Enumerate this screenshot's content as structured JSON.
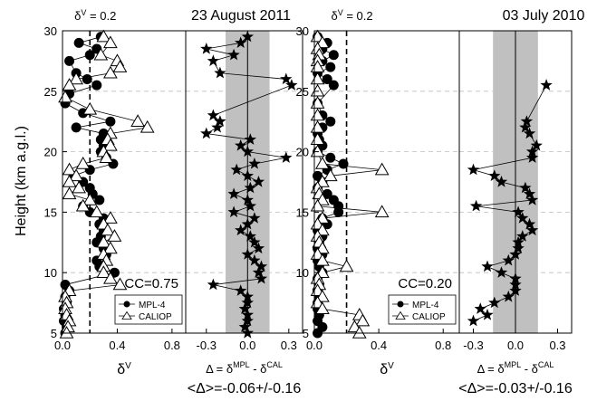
{
  "chart_data": [
    {
      "type": "line",
      "panel": "a-depol",
      "title": "23 August 2011",
      "ylabel": "Height (km a.g.l.)",
      "xlabel": "δV",
      "ylim": [
        5,
        30
      ],
      "yticks": [
        5,
        10,
        15,
        20,
        25,
        30
      ],
      "xlim": [
        0,
        0.9
      ],
      "xticks": [
        "0.0",
        "0.4",
        "0.8"
      ],
      "reference": {
        "label": "δV = 0.2",
        "value": 0.2
      },
      "annotation": "CC=0.75",
      "legend": [
        "MPL-4",
        "CALIOP"
      ],
      "series": [
        {
          "name": "MPL-4",
          "marker": "circle",
          "y": [
            29.5,
            29.0,
            28.5,
            28.0,
            27.5,
            26.5,
            26.0,
            25.5,
            24.8,
            24.0,
            23.2,
            22.5,
            22.0,
            21.5,
            21.0,
            20.5,
            20.0,
            19.5,
            19.0,
            18.5,
            18.0,
            17.5,
            17.0,
            16.5,
            16.0,
            15.5,
            15.0,
            14.5,
            14.0,
            13.5,
            13.0,
            12.5,
            12.0,
            11.5,
            11.0,
            10.5,
            10.0,
            9.0,
            8.5,
            8.0,
            7.5,
            7.0,
            6.5,
            6.0,
            5.5,
            5.0
          ],
          "x": [
            0.28,
            0.12,
            0.25,
            0.2,
            0.05,
            0.1,
            0.18,
            0.25,
            0.05,
            0.02,
            0.15,
            0.35,
            0.1,
            0.3,
            0.28,
            0.3,
            0.28,
            0.32,
            0.37,
            0.2,
            0.08,
            0.15,
            0.2,
            0.22,
            0.27,
            0.15,
            0.2,
            0.3,
            0.27,
            0.3,
            0.28,
            0.25,
            0.3,
            0.32,
            0.25,
            0.27,
            0.38,
            0.02,
            0.05,
            0.02,
            0.03,
            0.01,
            0.02,
            0.01,
            0.03,
            0.02
          ]
        },
        {
          "name": "CALIOP",
          "marker": "triangle",
          "y": [
            29.5,
            29.0,
            28.0,
            27.5,
            27.0,
            26.5,
            26.0,
            25.5,
            24.5,
            23.5,
            22.5,
            22.0,
            21.5,
            21.0,
            20.5,
            20.0,
            19.5,
            19.0,
            18.5,
            18.0,
            17.5,
            17.0,
            16.5,
            16.0,
            15.5,
            15.0,
            14.5,
            14.0,
            13.5,
            13.0,
            12.5,
            12.0,
            11.5,
            11.0,
            10.5,
            10.0,
            9.5,
            9.0,
            8.5,
            8.0,
            7.5,
            7.0,
            6.5,
            6.0,
            5.5,
            5.0
          ],
          "x": [
            0.3,
            0.35,
            0.28,
            0.4,
            0.42,
            0.35,
            0.1,
            0.05,
            0.02,
            0.2,
            0.55,
            0.62,
            0.35,
            0.33,
            0.35,
            0.3,
            0.32,
            0.15,
            0.05,
            0.1,
            0.05,
            0.12,
            0.05,
            0.2,
            0.15,
            0.25,
            0.35,
            0.3,
            0.33,
            0.38,
            0.3,
            0.35,
            0.3,
            0.32,
            0.3,
            0.3,
            0.35,
            0.42,
            0.05,
            0.02,
            0.03,
            0.02,
            0.03,
            0.05,
            0.04,
            0.03
          ]
        }
      ]
    },
    {
      "type": "line",
      "panel": "a-diff",
      "xlabel": "Δ = δMPL - δCAL",
      "stat": "<Δ>=-0.06+/-0.16",
      "ylim": [
        5,
        30
      ],
      "xlim": [
        -0.45,
        0.4
      ],
      "xticks": [
        "-0.3",
        "0.0",
        "0.3"
      ],
      "band": [
        -0.16,
        0.16
      ],
      "mean": -0.06,
      "series": [
        {
          "name": "Δ",
          "marker": "star",
          "y": [
            29.5,
            29.0,
            28.5,
            28.0,
            27.5,
            26.5,
            26.0,
            25.5,
            23.0,
            22.5,
            22.0,
            21.5,
            21.0,
            20.5,
            20.0,
            19.5,
            19.0,
            18.5,
            18.0,
            17.5,
            17.0,
            16.5,
            16.0,
            15.5,
            15.0,
            14.5,
            14.0,
            13.5,
            13.0,
            12.5,
            12.0,
            11.5,
            11.0,
            10.5,
            10.0,
            9.5,
            9.0,
            8.5,
            8.0,
            7.5,
            7.0,
            6.5,
            6.0,
            5.5,
            5.0
          ],
          "x": [
            0.0,
            -0.05,
            -0.3,
            -0.1,
            -0.25,
            -0.2,
            0.28,
            0.32,
            -0.25,
            -0.2,
            -0.22,
            -0.3,
            0.02,
            -0.05,
            0.0,
            0.28,
            0.05,
            -0.08,
            0.0,
            0.08,
            0.02,
            -0.1,
            0.0,
            0.02,
            -0.1,
            0.05,
            0.0,
            -0.05,
            0.02,
            0.05,
            0.08,
            0.0,
            0.05,
            0.1,
            0.08,
            0.1,
            -0.25,
            -0.05,
            0.0,
            0.0,
            -0.02,
            0.0,
            0.0,
            -0.02,
            0.0
          ]
        }
      ]
    },
    {
      "type": "line",
      "panel": "b-depol",
      "title": "03 July 2010",
      "xlabel": "δV",
      "ylim": [
        5,
        30
      ],
      "xlim": [
        0,
        0.9
      ],
      "xticks": [
        "0.0",
        "0.4",
        "0.8"
      ],
      "reference": {
        "label": "δV = 0.2",
        "value": 0.2
      },
      "annotation": "CC=0.20",
      "legend": [
        "MPL-4",
        "CALIOP"
      ],
      "series": [
        {
          "name": "MPL-4",
          "marker": "circle",
          "y": [
            29.5,
            29.0,
            28.5,
            28.0,
            27.5,
            27.0,
            26.5,
            26.0,
            25.5,
            24.0,
            23.0,
            22.5,
            22.0,
            21.5,
            21.0,
            20.5,
            20.0,
            19.5,
            19.0,
            18.5,
            18.0,
            17.5,
            17.0,
            16.5,
            16.0,
            15.5,
            15.0,
            14.5,
            14.0,
            13.5,
            13.0,
            12.5,
            12.0,
            11.5,
            11.0,
            10.5,
            10.0,
            9.5,
            9.0,
            8.5,
            8.0,
            7.5,
            7.0,
            6.5,
            6.0,
            5.5,
            5.0
          ],
          "x": [
            0.02,
            0.08,
            0.05,
            0.12,
            0.05,
            0.1,
            0.02,
            0.08,
            0.12,
            0.02,
            0.05,
            0.1,
            0.05,
            0.02,
            0.03,
            0.05,
            0.02,
            0.1,
            0.18,
            0.08,
            0.02,
            0.05,
            0.02,
            0.08,
            0.12,
            0.15,
            0.15,
            0.05,
            0.08,
            0.02,
            0.05,
            0.03,
            0.02,
            0.05,
            0.02,
            0.03,
            0.05,
            0.02,
            0.03,
            0.02,
            0.03,
            0.02,
            0.02,
            0.03,
            0.02,
            0.05,
            0.02
          ]
        },
        {
          "name": "CALIOP",
          "marker": "triangle",
          "y": [
            29.5,
            29.0,
            28.5,
            28.0,
            27.5,
            27.0,
            26.0,
            25.0,
            24.0,
            23.0,
            22.0,
            21.0,
            20.0,
            19.0,
            18.5,
            18.0,
            17.5,
            17.0,
            16.5,
            16.0,
            15.5,
            15.0,
            14.5,
            14.0,
            13.5,
            13.0,
            12.5,
            12.0,
            11.5,
            11.0,
            10.5,
            10.0,
            9.5,
            9.0,
            8.5,
            8.0,
            7.5,
            7.0,
            6.5,
            6.0,
            5.5,
            5.0
          ],
          "x": [
            0.02,
            0.05,
            0.02,
            0.03,
            0.02,
            0.02,
            0.02,
            0.02,
            0.02,
            0.02,
            0.02,
            0.02,
            0.02,
            0.05,
            0.42,
            0.1,
            0.05,
            0.02,
            0.03,
            0.05,
            0.02,
            0.42,
            0.05,
            0.02,
            0.05,
            0.02,
            0.03,
            0.05,
            0.02,
            0.05,
            0.2,
            0.05,
            0.02,
            0.03,
            0.02,
            0.05,
            0.02,
            0.05,
            0.28,
            0.3,
            0.25,
            0.28
          ]
        }
      ]
    },
    {
      "type": "line",
      "panel": "b-diff",
      "xlabel": "Δ = δMPL - δCAL",
      "stat": "<Δ>=-0.03+/-0.16",
      "ylim": [
        5,
        30
      ],
      "xlim": [
        -0.4,
        0.4
      ],
      "xticks": [
        "-0.3",
        "0.0",
        "0.3"
      ],
      "band": [
        -0.16,
        0.16
      ],
      "mean": -0.03,
      "series": [
        {
          "name": "Δ",
          "marker": "star",
          "y": [
            25.5,
            22.5,
            22.0,
            21.5,
            20.5,
            20.0,
            19.5,
            18.5,
            18.0,
            17.5,
            17.0,
            16.5,
            16.0,
            15.5,
            15.0,
            14.5,
            14.0,
            13.5,
            13.0,
            12.5,
            12.0,
            11.5,
            11.0,
            10.5,
            10.0,
            9.5,
            9.0,
            8.5,
            8.0,
            7.5,
            7.0,
            6.5,
            6.0
          ],
          "x": [
            0.22,
            0.08,
            0.07,
            0.1,
            0.15,
            0.12,
            0.12,
            -0.3,
            -0.15,
            -0.1,
            0.07,
            0.1,
            0.12,
            -0.28,
            0.02,
            0.05,
            0.1,
            0.12,
            0.05,
            0.02,
            0.02,
            0.0,
            -0.05,
            -0.2,
            -0.1,
            0.0,
            0.0,
            0.0,
            -0.05,
            -0.15,
            -0.25,
            -0.2,
            -0.3
          ]
        }
      ]
    }
  ]
}
